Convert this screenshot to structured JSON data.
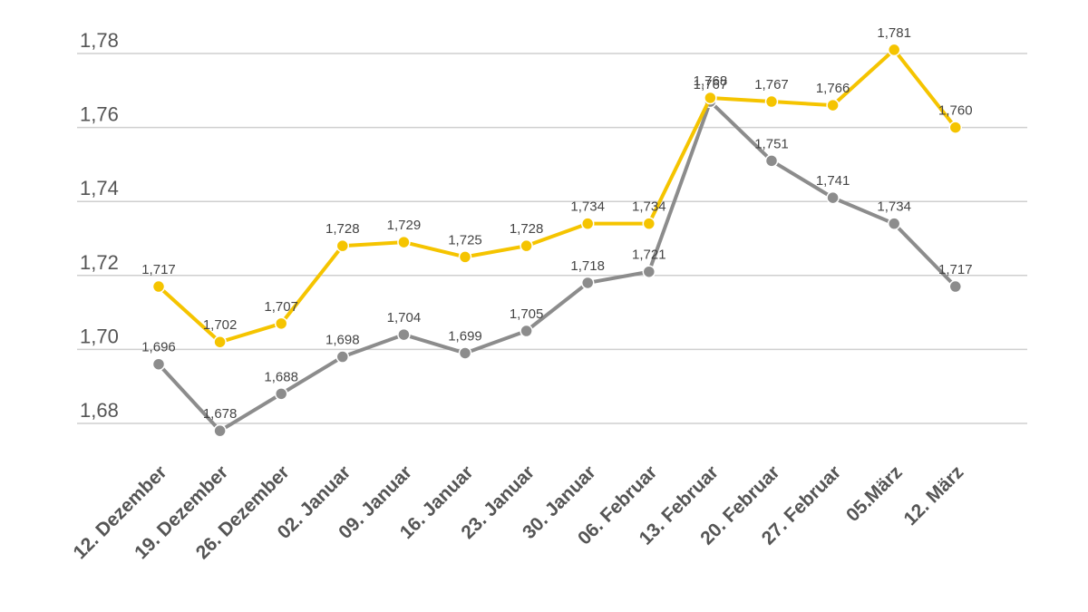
{
  "chart_data": {
    "type": "line",
    "title": "",
    "xlabel": "",
    "ylabel": "",
    "ylim": [
      1.68,
      1.78
    ],
    "yticks": [
      "1,68",
      "1,70",
      "1,72",
      "1,74",
      "1,76",
      "1,78"
    ],
    "categories": [
      "12. Dezember",
      "19. Dezember",
      "26. Dezember",
      "02. Januar",
      "09. Januar",
      "16. Januar",
      "23. Januar",
      "30. Januar",
      "06. Februar",
      "13. Februar",
      "20. Februar",
      "27. Februar",
      "05.März",
      "12. März"
    ],
    "series": [
      {
        "name": "gelb",
        "color": "#f5c400",
        "values": [
          1.717,
          1.702,
          1.707,
          1.728,
          1.729,
          1.725,
          1.728,
          1.734,
          1.734,
          1.768,
          1.767,
          1.766,
          1.781,
          1.76
        ],
        "labels": [
          "1,717",
          "1,702",
          "1,707",
          "1,728",
          "1,729",
          "1,725",
          "1,728",
          "1,734",
          "1,734",
          "1,768",
          "1,767",
          "1,766",
          "1,781",
          "1,760"
        ]
      },
      {
        "name": "grau",
        "color": "#8c8c8c",
        "values": [
          1.696,
          1.678,
          1.688,
          1.698,
          1.704,
          1.699,
          1.705,
          1.718,
          1.721,
          1.767,
          1.751,
          1.741,
          1.734,
          1.717
        ],
        "labels": [
          "1,696",
          "1,678",
          "1,688",
          "1,698",
          "1,704",
          "1,699",
          "1,705",
          "1,718",
          "1,721",
          "1,767",
          "1,751",
          "1,741",
          "1,734",
          "1,717"
        ]
      }
    ],
    "legend": "none",
    "grid": true
  }
}
